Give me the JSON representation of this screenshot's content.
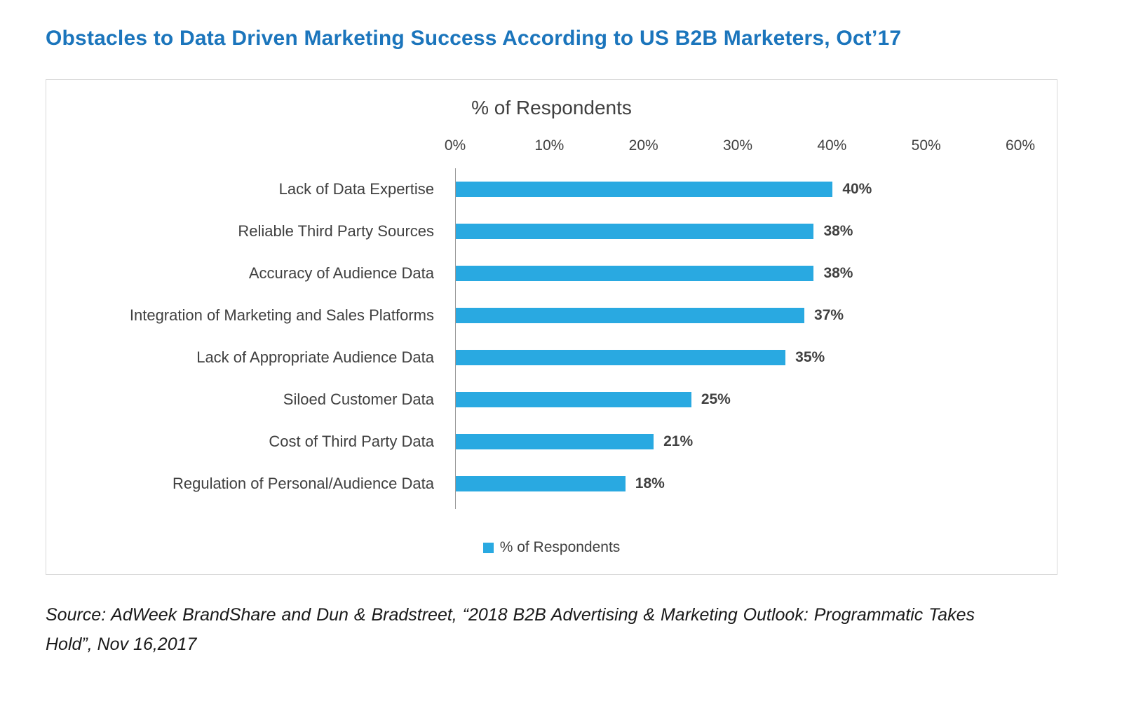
{
  "page_title": "Obstacles to Data Driven Marketing Success According to US B2B Marketers, Oct’17",
  "chart_data": {
    "type": "bar",
    "orientation": "horizontal",
    "title": "% of Respondents",
    "categories": [
      "Lack of Data Expertise",
      "Reliable Third Party Sources",
      "Accuracy of Audience Data",
      "Integration of Marketing and Sales Platforms",
      "Lack of Appropriate Audience Data",
      "Siloed Customer Data",
      "Cost of Third Party Data",
      "Regulation of Personal/Audience Data"
    ],
    "values": [
      40,
      38,
      38,
      37,
      35,
      25,
      21,
      18
    ],
    "value_labels": [
      "40%",
      "38%",
      "38%",
      "37%",
      "35%",
      "25%",
      "21%",
      "18%"
    ],
    "xlim": [
      0,
      60
    ],
    "x_ticks": [
      "0%",
      "10%",
      "20%",
      "30%",
      "40%",
      "50%",
      "60%"
    ],
    "x_tick_step": 10,
    "grid": false,
    "legend": [
      "% of Respondents"
    ],
    "legend_position": "bottom"
  },
  "colors": {
    "title": "#1b75bc",
    "bar": "#29a9e1",
    "axis_text": "#404040",
    "axis_line": "#9a9a9a",
    "border": "#d9d9d9"
  },
  "source": {
    "text": "Source: AdWeek BrandShare and Dun & Bradstreet, “2018 B2B Advertising & Marketing Outlook: Programmatic Takes Hold”, Nov 16,2017"
  }
}
